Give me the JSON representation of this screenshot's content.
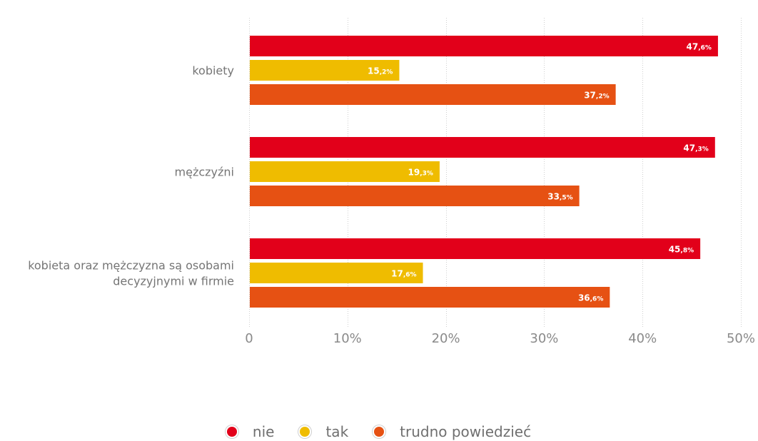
{
  "chart_data": {
    "type": "bar",
    "orientation": "horizontal",
    "categories": [
      [
        "kobiety"
      ],
      [
        "mężczyźni"
      ],
      [
        "kobieta oraz mężczyzna są osobami",
        "decyzyjnymi w firmie"
      ]
    ],
    "series": [
      {
        "name": "nie",
        "color": "#e2001a",
        "values": [
          47.6,
          47.3,
          45.8
        ],
        "labels": [
          "47,6%",
          "47,3%",
          "45,8%"
        ]
      },
      {
        "name": "tak",
        "color": "#efbc00",
        "values": [
          15.2,
          19.3,
          17.6
        ],
        "labels": [
          "15,2%",
          "19,3%",
          "17,6%"
        ]
      },
      {
        "name": "trudno powiedzieć",
        "color": "#e65113",
        "values": [
          37.2,
          33.5,
          36.6
        ],
        "labels": [
          "37,2%",
          "33,5%",
          "36,6%"
        ]
      }
    ],
    "xlim": [
      0,
      50
    ],
    "ticks": [
      "0",
      "10%",
      "20%",
      "30%",
      "40%",
      "50%"
    ],
    "grid": true,
    "legend_position": "bottom"
  }
}
